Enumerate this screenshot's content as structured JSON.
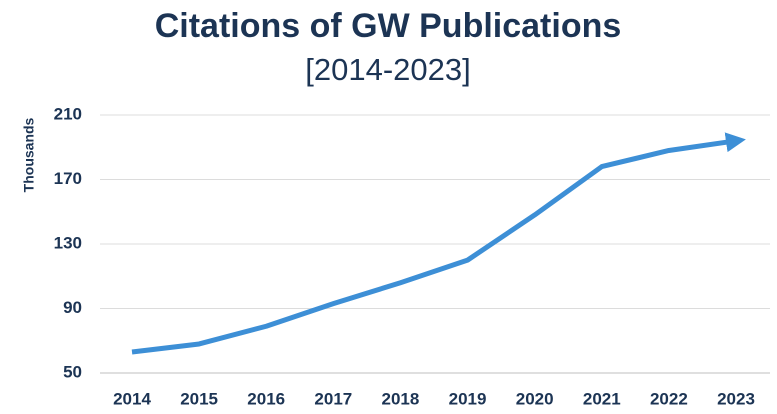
{
  "chart_data": {
    "type": "line",
    "title": "Citations of GW Publications",
    "subtitle": "[2014-2023]",
    "y_label": "Thousands",
    "categories": [
      "2014",
      "2015",
      "2016",
      "2017",
      "2018",
      "2019",
      "2020",
      "2021",
      "2022",
      "2023"
    ],
    "series": [
      {
        "name": "Citations",
        "color": "#3d8fd6",
        "values": [
          63,
          68,
          79,
          93,
          106,
          120,
          148,
          178,
          188,
          194
        ]
      }
    ],
    "ylim": [
      50,
      210
    ],
    "yticks": [
      50,
      90,
      130,
      170,
      210
    ],
    "grid": true
  }
}
